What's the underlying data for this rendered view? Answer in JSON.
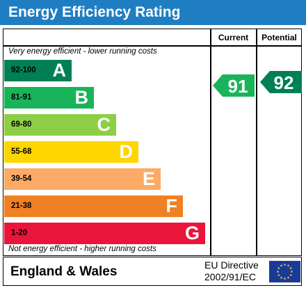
{
  "title": "Energy Efficiency Rating",
  "headers": {
    "current": "Current",
    "potential": "Potential"
  },
  "caption_top": "Very energy efficient - lower running costs",
  "caption_bottom": "Not energy efficient - higher running costs",
  "bands": [
    {
      "range": "92-100",
      "letter": "A",
      "color": "#008054",
      "range_color": "#000000"
    },
    {
      "range": "81-91",
      "letter": "B",
      "color": "#19b459",
      "range_color": "#000000"
    },
    {
      "range": "69-80",
      "letter": "C",
      "color": "#8dce46",
      "range_color": "#000000"
    },
    {
      "range": "55-68",
      "letter": "D",
      "color": "#ffd500",
      "range_color": "#000000"
    },
    {
      "range": "39-54",
      "letter": "E",
      "color": "#fcaa65",
      "range_color": "#000000"
    },
    {
      "range": "21-38",
      "letter": "F",
      "color": "#ef8023",
      "range_color": "#000000"
    },
    {
      "range": "1-20",
      "letter": "G",
      "color": "#e9153b",
      "range_color": "#000000"
    }
  ],
  "current": {
    "score": "91",
    "color": "#19b459"
  },
  "potential": {
    "score": "92",
    "color": "#008054"
  },
  "footer": {
    "region": "England & Wales",
    "directive_line1": "EU Directive",
    "directive_line2": "2002/91/EC"
  },
  "colors": {
    "title_bar": "#1f7ec2",
    "eu_flag": "#1a3a9a",
    "eu_stars": "#ffdd00"
  }
}
